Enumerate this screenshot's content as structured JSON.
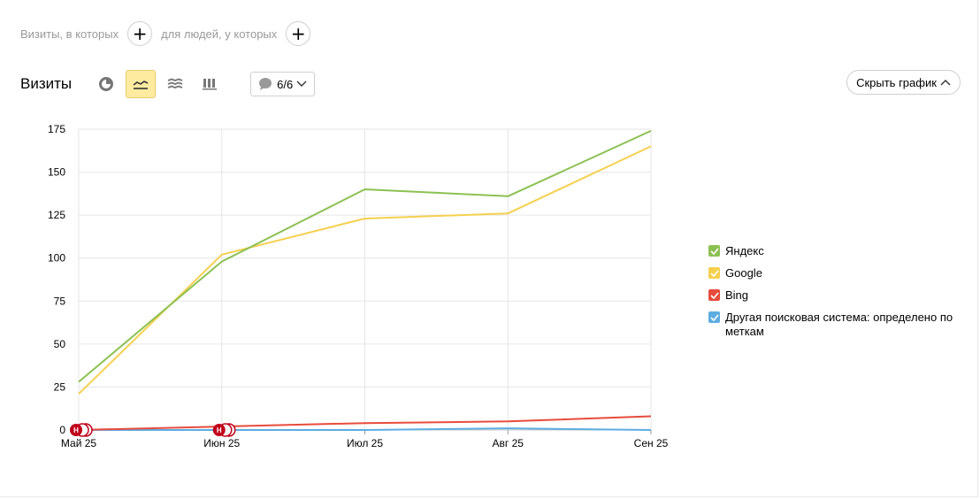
{
  "segment": {
    "visits_label": "Визиты, в которых",
    "people_label": "для людей, у которых",
    "plus_symbol": "+"
  },
  "toolbar": {
    "title": "Визиты",
    "series_count": "6/6",
    "hide_chart_label": "Скрыть график"
  },
  "colors": {
    "yandex": "#8cc152",
    "google": "#f5d04e",
    "bing": "#e74c3c",
    "other": "#5dade2",
    "active_button": "#ffeba0",
    "annotation": "#c0001a"
  },
  "chart_data": {
    "type": "line",
    "categories": [
      "Май 25",
      "Июн 25",
      "Июл 25",
      "Авг 25",
      "Сен 25"
    ],
    "ylim": [
      0,
      175
    ],
    "yticks": [
      0,
      25,
      50,
      75,
      100,
      125,
      150,
      175
    ],
    "grid": true,
    "legend_position": "right",
    "series": [
      {
        "name": "Яндекс",
        "color": "#8cc152",
        "values": [
          28,
          98,
          140,
          136,
          174
        ]
      },
      {
        "name": "Google",
        "color": "#f5d04e",
        "values": [
          21,
          102,
          123,
          126,
          165
        ]
      },
      {
        "name": "Bing",
        "color": "#e74c3c",
        "values": [
          0,
          2,
          4,
          5,
          8
        ]
      },
      {
        "name": "Другая поисковая система: определено по меткам",
        "color": "#5dade2",
        "values": [
          0,
          0,
          0,
          1,
          0
        ]
      }
    ],
    "annotations": [
      {
        "category": "Май 25",
        "label": "H"
      },
      {
        "category": "Июн 25",
        "label": "H"
      }
    ]
  }
}
